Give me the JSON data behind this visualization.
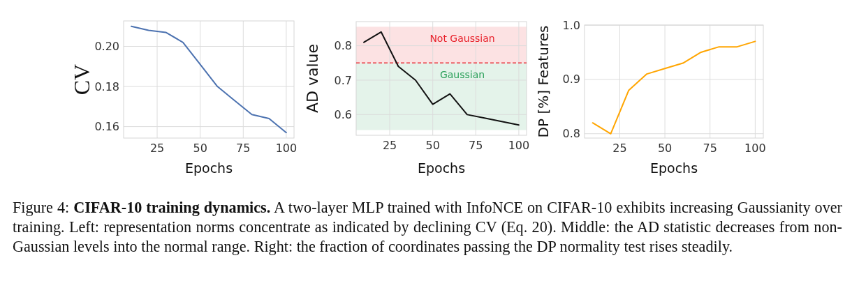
{
  "chart_data": [
    {
      "type": "line",
      "xlabel": "Epochs",
      "ylabel": "CV",
      "x": [
        10,
        20,
        30,
        40,
        50,
        60,
        70,
        80,
        90,
        100
      ],
      "series": [
        {
          "color": "#4c72b0",
          "values": [
            0.21,
            0.208,
            0.207,
            0.202,
            0.191,
            0.18,
            0.173,
            0.166,
            0.164,
            0.157
          ]
        }
      ],
      "xlim": [
        5.5,
        104.5
      ],
      "xticks": [
        25,
        50,
        75,
        100
      ],
      "ylim": [
        0.1543,
        0.2127
      ],
      "yticks": [
        {
          "value": 0.16,
          "label": "0.16"
        },
        {
          "value": 0.18,
          "label": "0.18"
        },
        {
          "value": 0.2,
          "label": "0.20"
        }
      ],
      "grid": true
    },
    {
      "type": "line",
      "xlabel": "Epochs",
      "ylabel": "AD value",
      "x": [
        10,
        20,
        30,
        40,
        50,
        60,
        70,
        80,
        90,
        100
      ],
      "series": [
        {
          "color": "#111111",
          "values": [
            0.81,
            0.84,
            0.74,
            0.7,
            0.63,
            0.66,
            0.6,
            0.59,
            0.58,
            0.57
          ]
        }
      ],
      "xlim": [
        5.5,
        104.5
      ],
      "xticks": [
        25,
        50,
        75,
        100
      ],
      "ylim": [
        0.54,
        0.87
      ],
      "yticks": [
        0.6,
        0.7,
        0.8
      ],
      "grid": true,
      "ref_lines": [
        {
          "axis": "y",
          "value": 0.75,
          "color": "#e8303a",
          "line_style": "dashed"
        }
      ],
      "bands": [
        {
          "axis": "y",
          "from": 0.75,
          "to": 0.855,
          "label": "Not Gaussian",
          "color": "#e8202a"
        },
        {
          "axis": "y",
          "from": 0.555,
          "to": 0.75,
          "label": "Gaussian",
          "color": "#2ca05a"
        }
      ]
    },
    {
      "type": "line",
      "xlabel": "Epochs",
      "ylabel": "DP [%] Features",
      "x": [
        10,
        20,
        30,
        40,
        50,
        60,
        70,
        80,
        90,
        100
      ],
      "series": [
        {
          "color": "#ffa500",
          "values": [
            0.82,
            0.8,
            0.88,
            0.91,
            0.92,
            0.93,
            0.95,
            0.96,
            0.96,
            0.97
          ]
        }
      ],
      "xlim": [
        5.5,
        104.5
      ],
      "xticks": [
        25,
        50,
        75,
        100
      ],
      "ylim": [
        0.792,
        1.0
      ],
      "yticks": [
        0.8,
        0.9,
        {
          "value": 1,
          "label": "1.0"
        }
      ],
      "grid": true
    },
    {
      "type": "other",
      "title": "CIFAR-10 training dynamics.",
      "annotations": [
        "Figure 4:",
        "A two-layer MLP trained with InfoNCE on CIFAR-10 exhibits increasing Gaussianity over training. Left: representation norms concentrate as indicated by declining CV (Eq. 20). Middle: the AD statistic decreases from non-Gaussian levels into the normal range. Right: the fraction of coordinates passing the DP normality test rises steadily."
      ]
    }
  ]
}
